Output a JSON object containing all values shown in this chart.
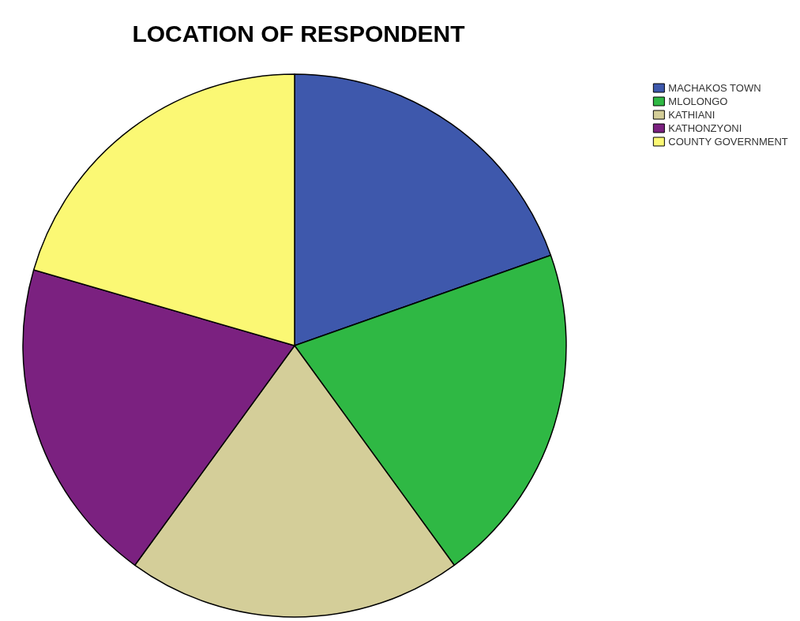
{
  "chart_data": {
    "type": "pie",
    "title": "LOCATION OF RESPONDENT",
    "categories": [
      "MACHAKOS TOWN",
      "MLOLONGO",
      "KATHIANI",
      "KATHONZYONI",
      "COUNTY GOVERNMENT"
    ],
    "values": [
      19.6,
      20.4,
      20.0,
      19.5,
      20.5
    ],
    "colors": [
      "#3e58ac",
      "#2fb844",
      "#d4ce99",
      "#7b2180",
      "#fbf874"
    ],
    "legend": "top right"
  }
}
